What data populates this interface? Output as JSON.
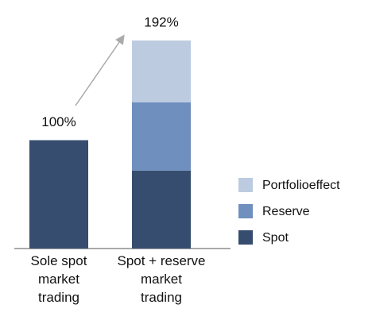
{
  "chart_data": {
    "type": "stacked-bar",
    "categories": [
      "Sole spot\nmarket\ntrading",
      "Spot + reserve\nmarket\ntrading"
    ],
    "series": [
      {
        "name": "Spot",
        "color": "#374d6f",
        "values": [
          100,
          72
        ]
      },
      {
        "name": "Reserve",
        "color": "#6f8fbf",
        "values": [
          0,
          63
        ]
      },
      {
        "name": "Portfolioeffect",
        "color": "#bccbe0",
        "values": [
          0,
          57
        ]
      }
    ],
    "totals": [
      100,
      192
    ],
    "total_labels": [
      "100%",
      "192%"
    ],
    "legend": "right"
  }
}
